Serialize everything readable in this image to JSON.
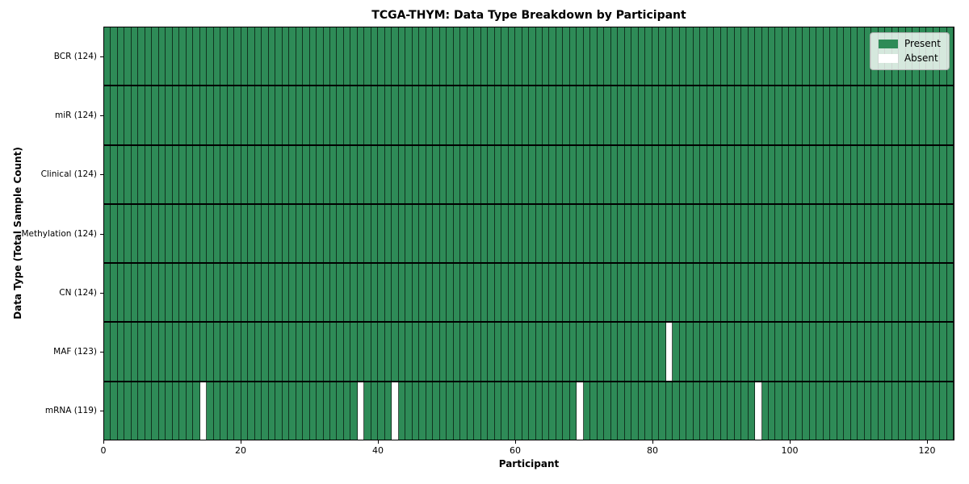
{
  "chart_data": {
    "type": "heatmap",
    "title": "TCGA-THYM: Data Type Breakdown by Participant",
    "xlabel": "Participant",
    "ylabel": "Data Type (Total Sample Count)",
    "n_participants": 124,
    "xlim": [
      0,
      124
    ],
    "x_ticks": [
      0,
      20,
      40,
      60,
      80,
      100,
      120
    ],
    "rows": [
      {
        "label": "BCR (124)",
        "data_type": "BCR",
        "total_samples": 124,
        "absent_participants": []
      },
      {
        "label": "miR (124)",
        "data_type": "miR",
        "total_samples": 124,
        "absent_participants": []
      },
      {
        "label": "Clinical (124)",
        "data_type": "Clinical",
        "total_samples": 124,
        "absent_participants": []
      },
      {
        "label": "Methylation (124)",
        "data_type": "Methylation",
        "total_samples": 124,
        "absent_participants": []
      },
      {
        "label": "CN (124)",
        "data_type": "CN",
        "total_samples": 124,
        "absent_participants": []
      },
      {
        "label": "MAF (123)",
        "data_type": "MAF",
        "total_samples": 123,
        "absent_participants": [
          82
        ]
      },
      {
        "label": "mRNA (119)",
        "data_type": "mRNA",
        "total_samples": 119,
        "absent_participants": [
          14,
          37,
          42,
          69,
          95
        ]
      }
    ],
    "legend": {
      "position": "upper-right",
      "entries": [
        {
          "label": "Present",
          "color": "#2e8b57"
        },
        {
          "label": "Absent",
          "color": "#ffffff"
        }
      ]
    },
    "colors": {
      "present": "#2e8b57",
      "absent": "#ffffff",
      "cell_edge": "rgba(8,22,14,0.75)",
      "row_divider": "#000000",
      "spine": "#000000",
      "figure_background": "#ffffff"
    }
  }
}
